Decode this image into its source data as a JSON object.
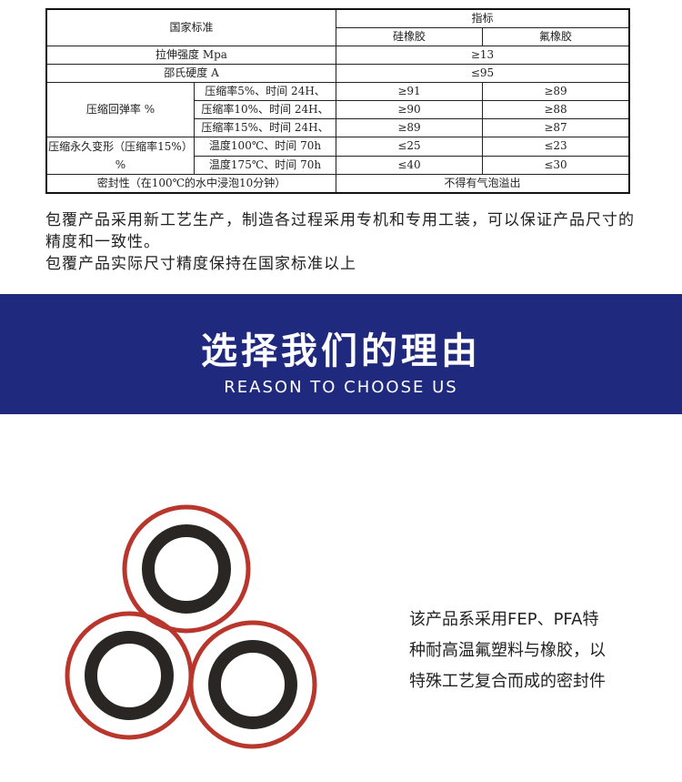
{
  "table": {
    "header": {
      "standard": "国家标准",
      "indicator": "指标",
      "silicone": "硅橡胶",
      "fluoro": "氟橡胶"
    },
    "tensile": {
      "label": "拉伸强度 Mpa",
      "value": "≥13"
    },
    "hardness": {
      "label": "邵氏硬度 A",
      "value": "≤95"
    },
    "resilience": {
      "label": "压缩回弹率 %",
      "rows": [
        {
          "cond": "压缩率5%、时间 24H、",
          "silicone": "≥91",
          "fluoro": "≥89"
        },
        {
          "cond": "压缩率10%、时间 24H、",
          "silicone": "≥90",
          "fluoro": "≥88"
        },
        {
          "cond": "压缩率15%、时间 24H、",
          "silicone": "≥89",
          "fluoro": "≥87"
        }
      ]
    },
    "set": {
      "label": "压缩永久变形（压缩率15%）%",
      "rows": [
        {
          "cond": "温度100℃、时间 70h",
          "silicone": "≤25",
          "fluoro": "≤23"
        },
        {
          "cond": "温度175℃、时间 70h",
          "silicone": "≤40",
          "fluoro": "≤30"
        }
      ]
    },
    "sealing": {
      "label": "密封性（在100℃的水中浸泡10分钟）",
      "value": "不得有气泡溢出"
    }
  },
  "intro": [
    "包覆产品采用新工艺生产，制造各过程采用专机和专用工装，可以保证产品尺寸的精度和一致性。",
    "包覆产品实际尺寸精度保持在国家标准以上"
  ],
  "banner": {
    "title": "选择我们的理由",
    "subtitle": "REASON TO CHOOSE US",
    "color": "#1f2a7e"
  },
  "description": [
    "该产品系采用FEP、PFA特",
    "种耐高温氟塑料与橡胶，以",
    "特殊工艺复合而成的密封件"
  ]
}
